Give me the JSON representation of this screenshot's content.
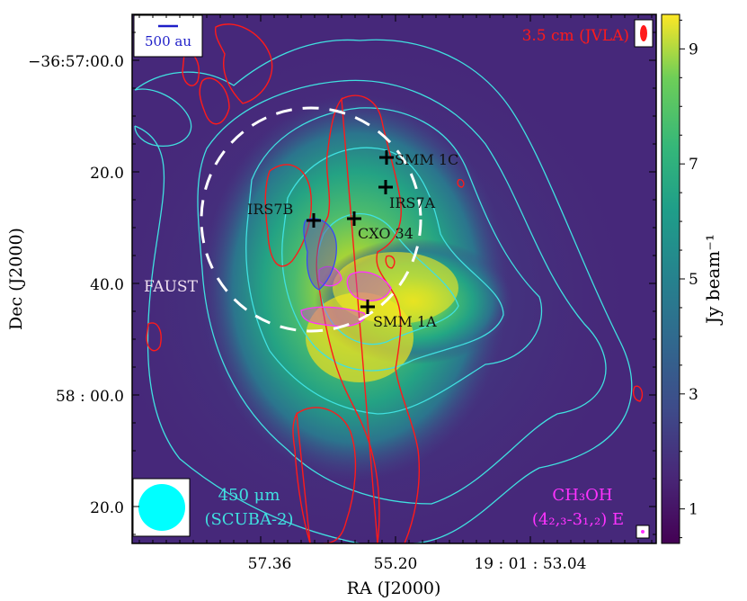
{
  "chart_data": {
    "type": "heatmap",
    "xlabel": "RA (J2000)",
    "ylabel": "Dec (J2000)",
    "x_tick_labels": [
      "57.36",
      "55.20",
      "19 : 01 : 53.04"
    ],
    "y_tick_labels": [
      "−36:57:00.0",
      "20.0",
      "40.0",
      "58 : 00.0",
      "20.0"
    ],
    "colorbar": {
      "label": "Jy beam⁻¹",
      "ticks": [
        1,
        3,
        5,
        7,
        9
      ],
      "range": [
        0.4,
        9.6
      ],
      "colormap": "viridis"
    },
    "annotations": {
      "scalebar": "500 au",
      "jvla": "3.5 cm (JVLA)",
      "faust": "FAUST",
      "scuba_line1": "450 μm",
      "scuba_line2": "(SCUBA-2)",
      "ch3oh_line1": "CH₃OH",
      "ch3oh_line2": "(4₂,₃-3₁,₂) E"
    },
    "sources": [
      {
        "name": "SMM 1C",
        "ra_label": "55.0",
        "dec": "17.5"
      },
      {
        "name": "IRS7A",
        "ra_label": "55.0",
        "dec": "22.5"
      },
      {
        "name": "IRS7B",
        "ra_label": "56.2",
        "dec": "29.0"
      },
      {
        "name": "CXO 34",
        "ra_label": "55.5",
        "dec": "28.0"
      },
      {
        "name": "SMM 1A",
        "ra_label": "55.3",
        "dec": "44.0"
      }
    ],
    "colors": {
      "contour_450um": "#40e0e0",
      "contour_jvla": "#ff1a1a",
      "contour_ch3oh": "#ff33ff",
      "contour_ch3oh_b": "#3344ff",
      "fov_circle": "#ffffff",
      "beam_450um": "#00ffff"
    }
  }
}
